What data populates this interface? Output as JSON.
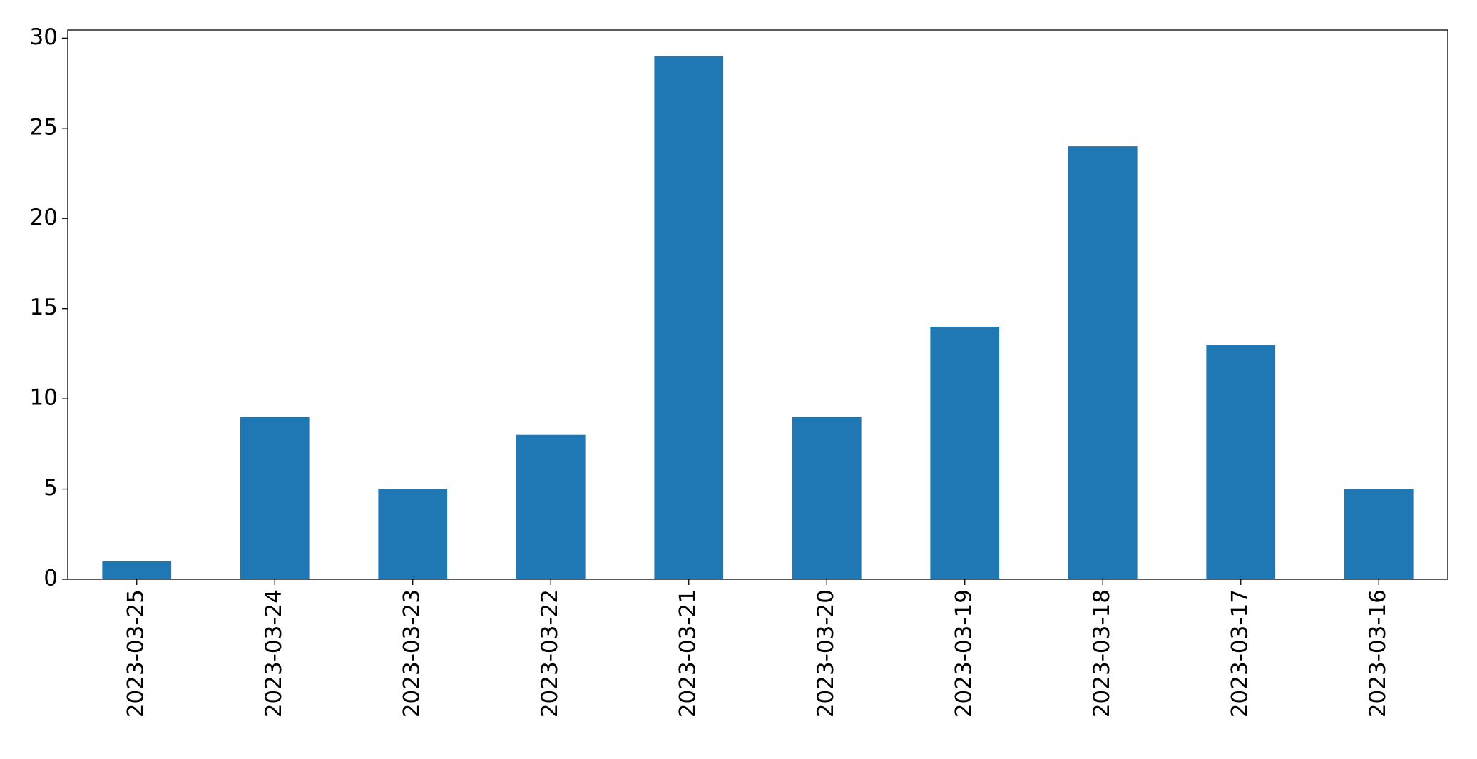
{
  "chart_data": {
    "type": "bar",
    "categories": [
      "2023-03-25",
      "2023-03-24",
      "2023-03-23",
      "2023-03-22",
      "2023-03-21",
      "2023-03-20",
      "2023-03-19",
      "2023-03-18",
      "2023-03-17",
      "2023-03-16"
    ],
    "values": [
      1,
      9,
      5,
      8,
      29,
      9,
      14,
      24,
      13,
      5
    ],
    "color": "#1f77b4",
    "ylim": [
      0,
      30.45
    ],
    "yticks": [
      0,
      5,
      10,
      15,
      20,
      25,
      30
    ],
    "grid": false
  }
}
